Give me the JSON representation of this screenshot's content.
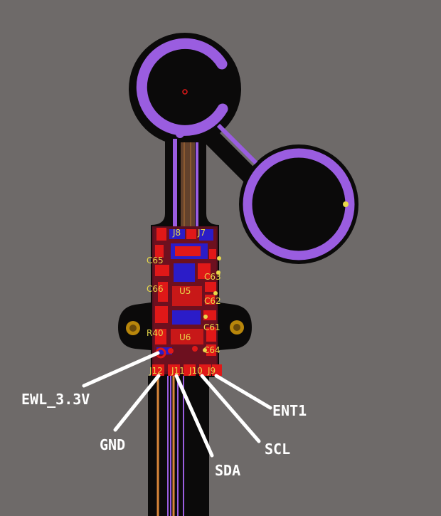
{
  "board": {
    "background": "#6e6a69",
    "colors": {
      "substrate": "#0b0a0a",
      "polygon": "#9a5de0",
      "copper_top": "#e01818",
      "copper_bottom": "#2b1cc8",
      "trace": "#d9873a",
      "silkscreen": "#e8d84a",
      "annotation": "#ffffff"
    }
  },
  "refdes": {
    "j8": "J8",
    "j7": "J7",
    "c65": "C65",
    "c63": "C63",
    "c66": "C66",
    "u5": "U5",
    "c62": "C62",
    "r40": "R40",
    "c61": "C61",
    "u6": "U6",
    "c64": "C64",
    "j12": "J12",
    "j11": "J11",
    "j10": "J10",
    "j9": "J9"
  },
  "callouts": {
    "ewl": "EWL_3.3V",
    "gnd": "GND",
    "sda": "SDA",
    "scl": "SCL",
    "ent1": "ENT1"
  }
}
